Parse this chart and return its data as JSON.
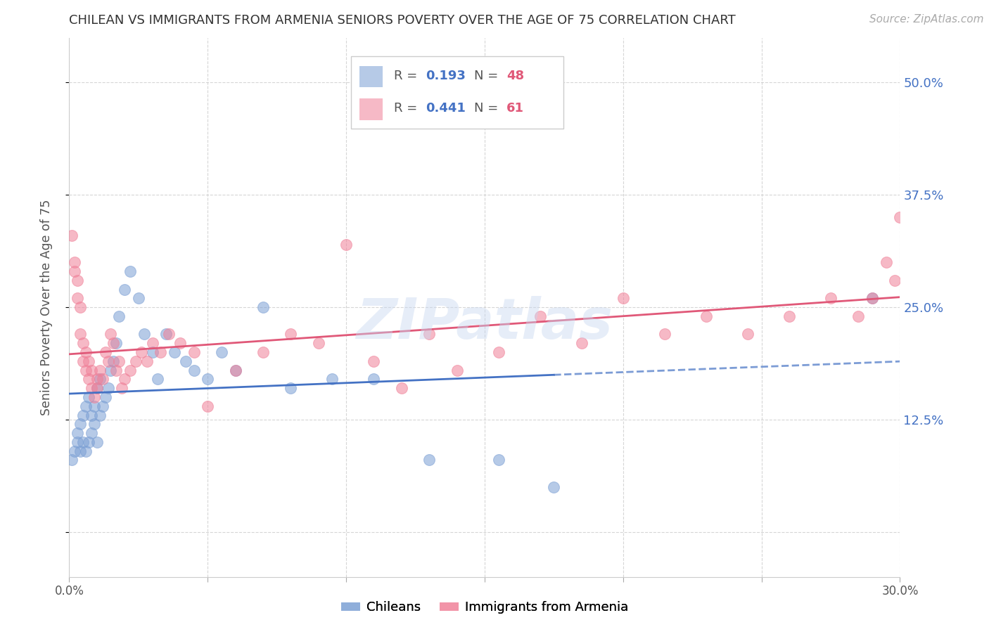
{
  "title": "CHILEAN VS IMMIGRANTS FROM ARMENIA SENIORS POVERTY OVER THE AGE OF 75 CORRELATION CHART",
  "source": "Source: ZipAtlas.com",
  "ylabel": "Seniors Poverty Over the Age of 75",
  "xmin": 0.0,
  "xmax": 0.3,
  "ymin": -0.05,
  "ymax": 0.55,
  "yticks": [
    0.0,
    0.125,
    0.25,
    0.375,
    0.5
  ],
  "ytick_labels": [
    "",
    "12.5%",
    "25.0%",
    "37.5%",
    "50.0%"
  ],
  "xticks": [
    0.0,
    0.05,
    0.1,
    0.15,
    0.2,
    0.25,
    0.3
  ],
  "xtick_labels": [
    "0.0%",
    "",
    "",
    "",
    "",
    "",
    "30.0%"
  ],
  "legend_r_chilean_val": "0.193",
  "legend_n_chilean_val": "48",
  "legend_r_armenia_val": "0.441",
  "legend_n_armenia_val": "61",
  "legend_label_chilean": "Chileans",
  "legend_label_armenia": "Immigrants from Armenia",
  "chilean_color": "#7B9FD4",
  "armenia_color": "#F08098",
  "chilean_line_color": "#4472C4",
  "armenia_line_color": "#E05878",
  "watermark": "ZIPatlas",
  "chilean_x": [
    0.001,
    0.002,
    0.003,
    0.003,
    0.004,
    0.004,
    0.005,
    0.005,
    0.006,
    0.006,
    0.007,
    0.007,
    0.008,
    0.008,
    0.009,
    0.009,
    0.01,
    0.01,
    0.011,
    0.011,
    0.012,
    0.013,
    0.014,
    0.015,
    0.016,
    0.017,
    0.018,
    0.02,
    0.022,
    0.025,
    0.027,
    0.03,
    0.032,
    0.035,
    0.038,
    0.042,
    0.045,
    0.05,
    0.055,
    0.06,
    0.07,
    0.08,
    0.095,
    0.11,
    0.13,
    0.155,
    0.175,
    0.29
  ],
  "chilean_y": [
    0.08,
    0.09,
    0.1,
    0.11,
    0.09,
    0.12,
    0.1,
    0.13,
    0.09,
    0.14,
    0.1,
    0.15,
    0.11,
    0.13,
    0.12,
    0.14,
    0.1,
    0.16,
    0.13,
    0.17,
    0.14,
    0.15,
    0.16,
    0.18,
    0.19,
    0.21,
    0.24,
    0.27,
    0.29,
    0.26,
    0.22,
    0.2,
    0.17,
    0.22,
    0.2,
    0.19,
    0.18,
    0.17,
    0.2,
    0.18,
    0.25,
    0.16,
    0.17,
    0.17,
    0.08,
    0.08,
    0.05,
    0.26
  ],
  "armenia_x": [
    0.001,
    0.002,
    0.002,
    0.003,
    0.003,
    0.004,
    0.004,
    0.005,
    0.005,
    0.006,
    0.006,
    0.007,
    0.007,
    0.008,
    0.008,
    0.009,
    0.01,
    0.01,
    0.011,
    0.012,
    0.013,
    0.014,
    0.015,
    0.016,
    0.017,
    0.018,
    0.019,
    0.02,
    0.022,
    0.024,
    0.026,
    0.028,
    0.03,
    0.033,
    0.036,
    0.04,
    0.045,
    0.05,
    0.06,
    0.07,
    0.08,
    0.09,
    0.1,
    0.11,
    0.12,
    0.13,
    0.14,
    0.155,
    0.17,
    0.185,
    0.2,
    0.215,
    0.23,
    0.245,
    0.26,
    0.275,
    0.285,
    0.29,
    0.295,
    0.298,
    0.3
  ],
  "armenia_y": [
    0.33,
    0.3,
    0.29,
    0.28,
    0.26,
    0.25,
    0.22,
    0.21,
    0.19,
    0.2,
    0.18,
    0.17,
    0.19,
    0.16,
    0.18,
    0.15,
    0.17,
    0.16,
    0.18,
    0.17,
    0.2,
    0.19,
    0.22,
    0.21,
    0.18,
    0.19,
    0.16,
    0.17,
    0.18,
    0.19,
    0.2,
    0.19,
    0.21,
    0.2,
    0.22,
    0.21,
    0.2,
    0.14,
    0.18,
    0.2,
    0.22,
    0.21,
    0.32,
    0.19,
    0.16,
    0.22,
    0.18,
    0.2,
    0.24,
    0.21,
    0.26,
    0.22,
    0.24,
    0.22,
    0.24,
    0.26,
    0.24,
    0.26,
    0.3,
    0.28,
    0.35
  ]
}
